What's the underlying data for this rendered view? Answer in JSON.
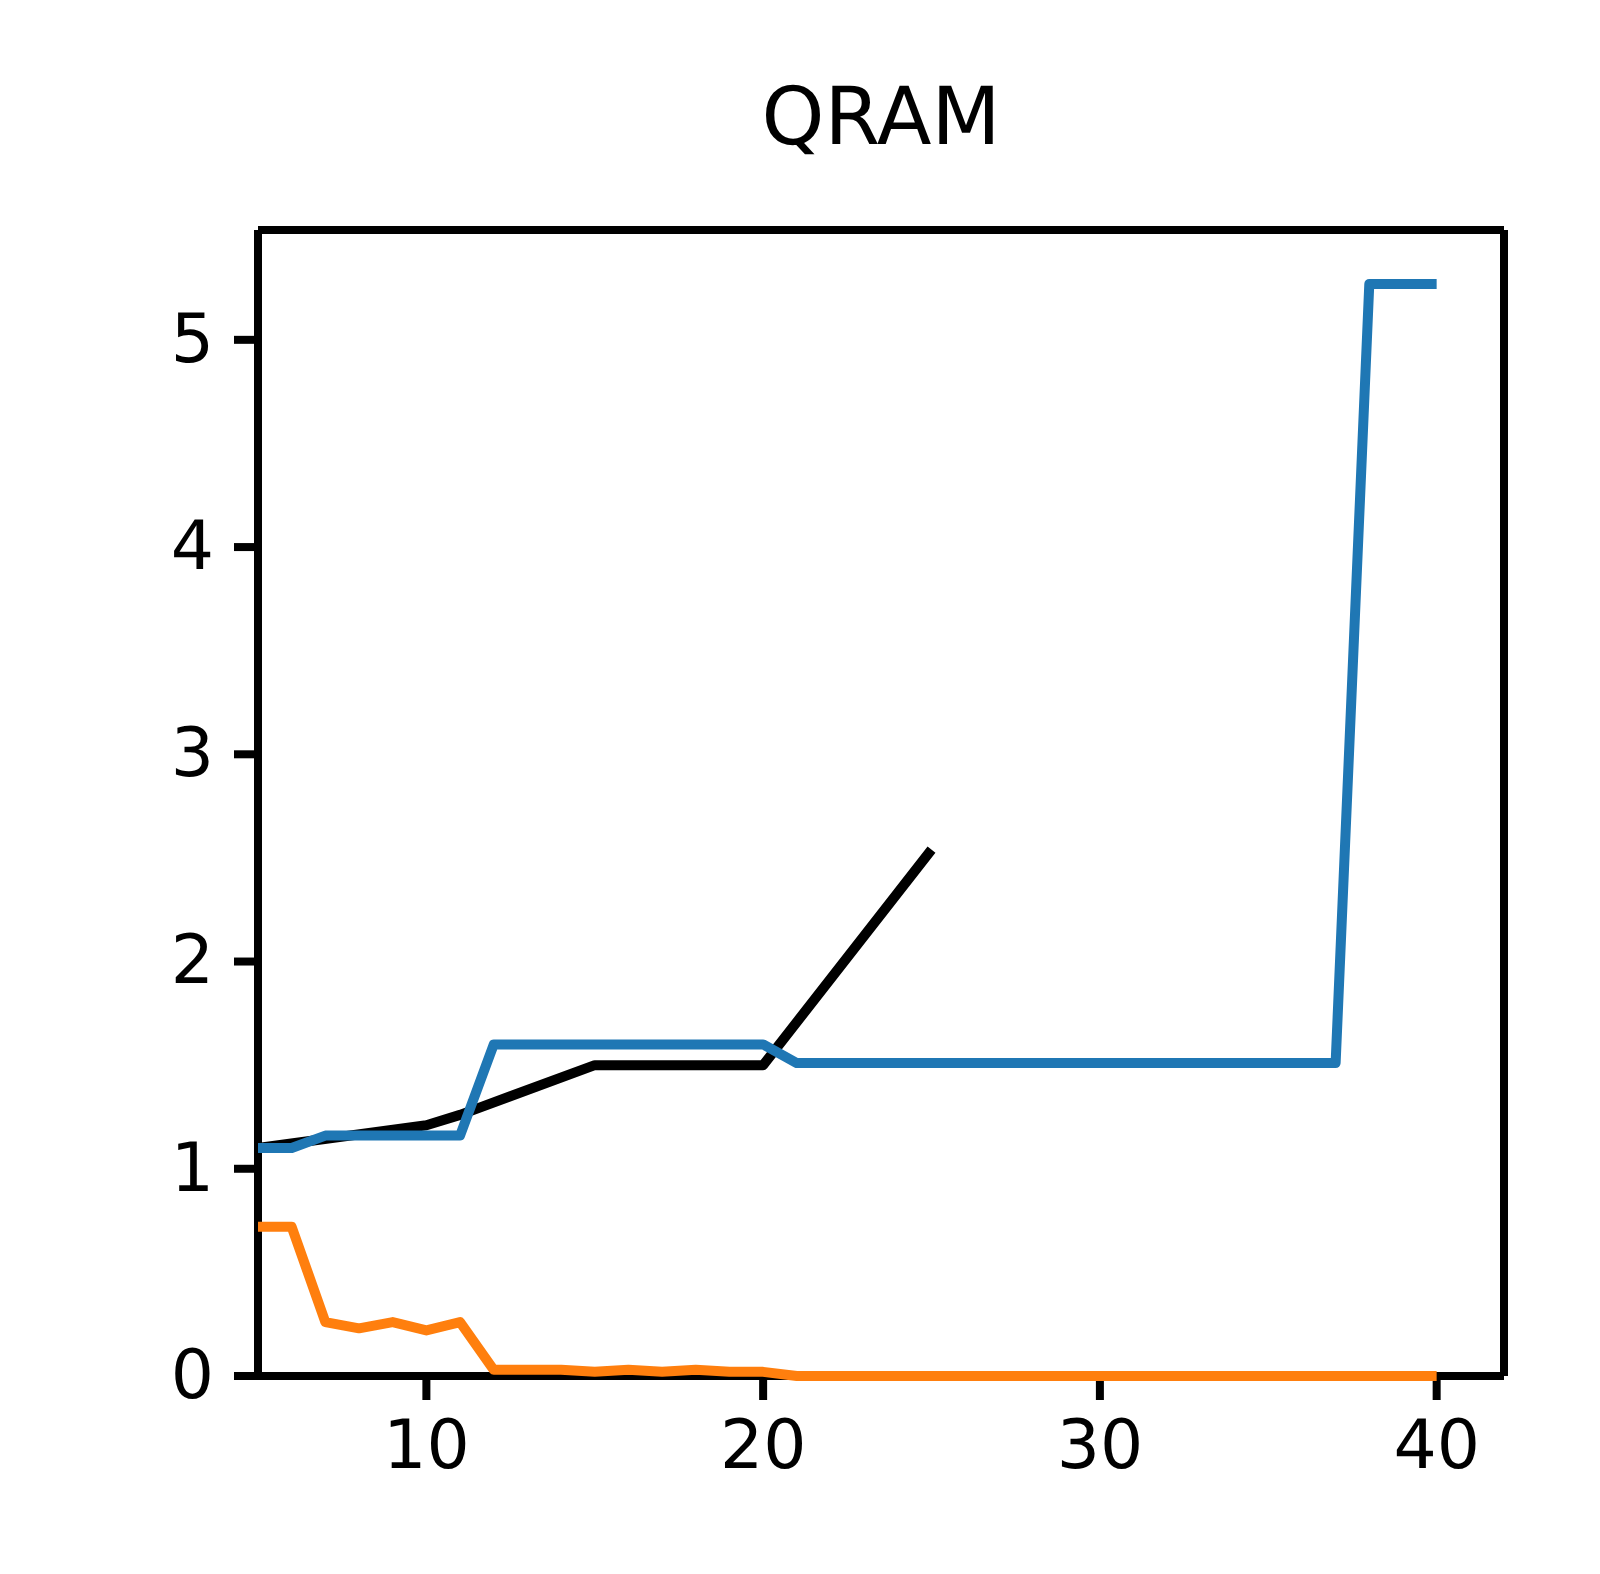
{
  "chart_data": {
    "type": "line",
    "title": "QRAM",
    "xlim": [
      5,
      42
    ],
    "ylim": [
      0,
      5.53
    ],
    "xticks": [
      10,
      20,
      30,
      40
    ],
    "yticks": [
      0,
      1,
      2,
      3,
      4,
      5
    ],
    "grid": false,
    "marker": "none",
    "line_style": "solid",
    "series": [
      {
        "color": "#000000",
        "x": [
          5,
          10,
          11,
          15,
          20,
          25
        ],
        "values": [
          1.1,
          1.21,
          1.26,
          1.5,
          1.5,
          2.54
        ]
      },
      {
        "color": "#ff7f0e",
        "x": [
          5,
          6,
          7,
          8,
          9,
          10,
          11,
          12,
          13,
          14,
          15,
          16,
          17,
          18,
          19,
          20,
          21,
          25,
          30,
          35,
          40
        ],
        "values": [
          0.72,
          0.72,
          0.26,
          0.23,
          0.26,
          0.22,
          0.26,
          0.03,
          0.03,
          0.03,
          0.02,
          0.03,
          0.02,
          0.03,
          0.02,
          0.02,
          0,
          0,
          0,
          0,
          0
        ]
      },
      {
        "color": "#1f77b4",
        "x": [
          5,
          6,
          7,
          8,
          9,
          10,
          11,
          12,
          13,
          15,
          20,
          21,
          25,
          30,
          37,
          38,
          39,
          40
        ],
        "values": [
          1.1,
          1.1,
          1.16,
          1.16,
          1.16,
          1.16,
          1.16,
          1.6,
          1.6,
          1.6,
          1.6,
          1.51,
          1.51,
          1.51,
          1.51,
          5.27,
          5.27,
          5.27
        ]
      }
    ]
  }
}
